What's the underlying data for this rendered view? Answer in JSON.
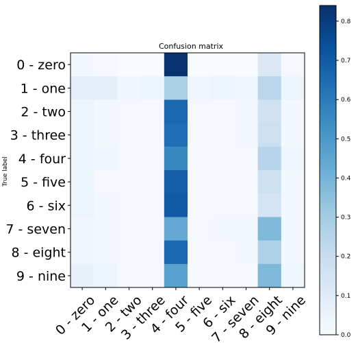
{
  "chart_data": {
    "type": "heatmap",
    "title": "Confusion matrix",
    "ylabel": "True label",
    "xlabel": "",
    "row_labels": [
      "0 - zero",
      "1 - one",
      "2 - two",
      "3 - three",
      "4 - four",
      "5 - five",
      "6 - six",
      "7 - seven",
      "8 - eight",
      "9 - nine"
    ],
    "col_labels": [
      "0 - zero",
      "1 - one",
      "2 - two",
      "3 - three",
      "4 - four",
      "5 - five",
      "6 - six",
      "7 - seven",
      "8 - eight",
      "9 - nine"
    ],
    "values": [
      [
        0.02,
        0.01,
        0.0,
        0.0,
        0.83,
        0.0,
        0.0,
        0.0,
        0.12,
        0.01
      ],
      [
        0.08,
        0.08,
        0.03,
        0.04,
        0.28,
        0.03,
        0.04,
        0.03,
        0.24,
        0.04
      ],
      [
        0.04,
        0.02,
        0.01,
        0.01,
        0.66,
        0.01,
        0.01,
        0.02,
        0.17,
        0.02
      ],
      [
        0.04,
        0.02,
        0.01,
        0.01,
        0.64,
        0.01,
        0.01,
        0.02,
        0.18,
        0.02
      ],
      [
        0.04,
        0.03,
        0.01,
        0.01,
        0.55,
        0.01,
        0.01,
        0.01,
        0.25,
        0.03
      ],
      [
        0.04,
        0.01,
        0.01,
        0.01,
        0.69,
        0.01,
        0.01,
        0.01,
        0.18,
        0.02
      ],
      [
        0.04,
        0.02,
        0.01,
        0.01,
        0.7,
        0.01,
        0.01,
        0.01,
        0.15,
        0.02
      ],
      [
        0.03,
        0.02,
        0.01,
        0.01,
        0.44,
        0.01,
        0.02,
        0.02,
        0.38,
        0.02
      ],
      [
        0.03,
        0.02,
        0.01,
        0.01,
        0.66,
        0.01,
        0.01,
        0.02,
        0.27,
        0.02
      ],
      [
        0.06,
        0.04,
        0.01,
        0.01,
        0.47,
        0.01,
        0.01,
        0.01,
        0.38,
        0.03
      ]
    ],
    "colormap": "Blues",
    "colorbar": {
      "min": 0.0,
      "max": 0.84,
      "ticks": [
        0.0,
        0.1,
        0.2,
        0.3,
        0.4,
        0.5,
        0.6,
        0.7,
        0.8
      ],
      "tick_labels": [
        "0.0",
        "0.1",
        "0.2",
        "0.3",
        "0.4",
        "0.5",
        "0.6",
        "0.7",
        "0.8"
      ]
    },
    "grid": false
  }
}
